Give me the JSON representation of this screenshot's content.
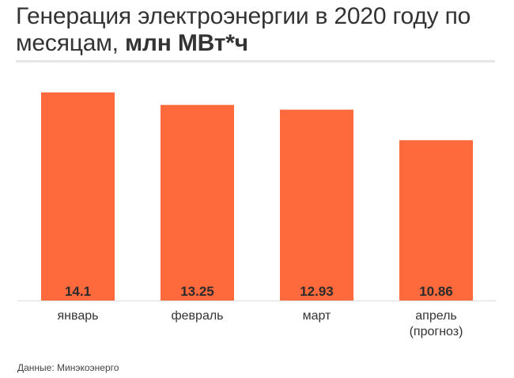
{
  "header": {
    "title_main": "Генерация электроэнергии в 2020 году по месяцам,",
    "title_unit": "млн МВт*ч"
  },
  "chart_data": {
    "type": "bar",
    "title": "Генерация электроэнергии в 2020 году по месяцам, млн МВт*ч",
    "categories": [
      [
        "январь"
      ],
      [
        "февраль"
      ],
      [
        "март"
      ],
      [
        "апрель",
        "(прогноз)"
      ]
    ],
    "values": [
      14.1,
      13.25,
      12.93,
      10.86
    ],
    "value_labels": [
      "14.1",
      "13.25",
      "12.93",
      "10.86"
    ],
    "ylim": [
      0,
      15.27
    ],
    "bar_color": "#ff6a3d",
    "grid": false,
    "legend": "none"
  },
  "footer": {
    "source": "Данные: Минэкоэнерго"
  }
}
